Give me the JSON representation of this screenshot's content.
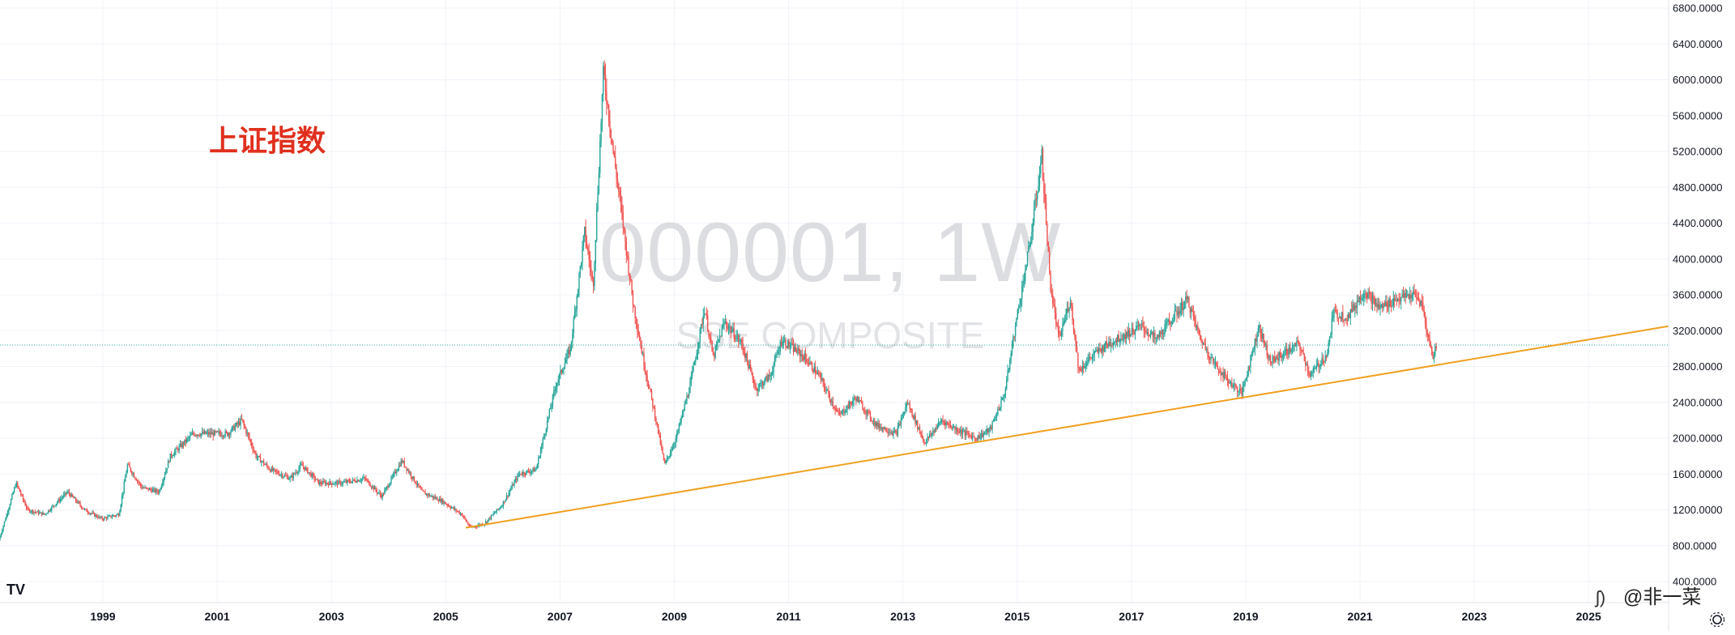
{
  "chart_data": {
    "type": "candlestick",
    "symbol": "000001, 1W",
    "name": "SSE COMPOSITE",
    "annotation": "上证指数",
    "credit": "@非一菜",
    "logo": "TV",
    "ylim": [
      400,
      6800
    ],
    "y_ticks": [
      400,
      800,
      1200,
      1600,
      2000,
      2400,
      2800,
      3200,
      3600,
      4000,
      4400,
      4800,
      5200,
      5600,
      6000,
      6400,
      6800
    ],
    "y_tick_labels": [
      "400.0000",
      "800.0000",
      "1200.0000",
      "1600.0000",
      "2000.0000",
      "2400.0000",
      "2800.0000",
      "3200.0000",
      "3600.0000",
      "4000.0000",
      "4400.0000",
      "4800.0000",
      "5200.0000",
      "5600.0000",
      "6000.0000",
      "6400.0000",
      "6800.0000"
    ],
    "xlim": [
      1997.2,
      2026.4
    ],
    "x_ticks": [
      1999,
      2001,
      2003,
      2005,
      2007,
      2009,
      2011,
      2013,
      2015,
      2017,
      2019,
      2021,
      2023,
      2025
    ],
    "x_tick_labels": [
      "1999",
      "2001",
      "2003",
      "2005",
      "2007",
      "2009",
      "2011",
      "2013",
      "2015",
      "2017",
      "2019",
      "2021",
      "2023",
      "2025"
    ],
    "last_price_line": 3040,
    "trendline": {
      "from": [
        2005.35,
        1000
      ],
      "to": [
        2026.4,
        3250
      ],
      "color": "#f0a020"
    },
    "colors": {
      "up": "#26a69a",
      "down": "#ef5350",
      "grid": "#f0f3fa",
      "price_line": "#26a69a"
    },
    "price_path": [
      [
        1997.2,
        860
      ],
      [
        1997.5,
        1500
      ],
      [
        1997.7,
        1200
      ],
      [
        1998.0,
        1150
      ],
      [
        1998.4,
        1400
      ],
      [
        1998.7,
        1200
      ],
      [
        1999.0,
        1100
      ],
      [
        1999.3,
        1150
      ],
      [
        1999.45,
        1700
      ],
      [
        1999.7,
        1450
      ],
      [
        2000.0,
        1400
      ],
      [
        2000.2,
        1800
      ],
      [
        2000.6,
        2050
      ],
      [
        2000.9,
        2050
      ],
      [
        2001.2,
        2050
      ],
      [
        2001.45,
        2200
      ],
      [
        2001.7,
        1800
      ],
      [
        2001.95,
        1650
      ],
      [
        2002.3,
        1550
      ],
      [
        2002.5,
        1700
      ],
      [
        2002.8,
        1500
      ],
      [
        2003.2,
        1500
      ],
      [
        2003.6,
        1550
      ],
      [
        2003.9,
        1350
      ],
      [
        2004.25,
        1750
      ],
      [
        2004.6,
        1400
      ],
      [
        2004.95,
        1300
      ],
      [
        2005.3,
        1150
      ],
      [
        2005.45,
        1000
      ],
      [
        2005.7,
        1050
      ],
      [
        2006.0,
        1250
      ],
      [
        2006.3,
        1600
      ],
      [
        2006.6,
        1650
      ],
      [
        2006.95,
        2600
      ],
      [
        2007.2,
        3000
      ],
      [
        2007.45,
        4300
      ],
      [
        2007.6,
        3700
      ],
      [
        2007.78,
        6100
      ],
      [
        2007.95,
        5200
      ],
      [
        2008.1,
        4500
      ],
      [
        2008.3,
        3500
      ],
      [
        2008.5,
        2800
      ],
      [
        2008.7,
        2200
      ],
      [
        2008.85,
        1700
      ],
      [
        2009.05,
        2000
      ],
      [
        2009.3,
        2600
      ],
      [
        2009.55,
        3450
      ],
      [
        2009.7,
        2900
      ],
      [
        2009.9,
        3300
      ],
      [
        2010.2,
        3050
      ],
      [
        2010.45,
        2550
      ],
      [
        2010.7,
        2700
      ],
      [
        2010.9,
        3100
      ],
      [
        2011.3,
        2900
      ],
      [
        2011.55,
        2700
      ],
      [
        2011.9,
        2250
      ],
      [
        2012.2,
        2450
      ],
      [
        2012.55,
        2150
      ],
      [
        2012.9,
        2050
      ],
      [
        2013.1,
        2400
      ],
      [
        2013.4,
        1950
      ],
      [
        2013.7,
        2200
      ],
      [
        2013.95,
        2100
      ],
      [
        2014.3,
        2000
      ],
      [
        2014.55,
        2100
      ],
      [
        2014.8,
        2500
      ],
      [
        2015.0,
        3300
      ],
      [
        2015.25,
        4200
      ],
      [
        2015.45,
        5150
      ],
      [
        2015.6,
        3700
      ],
      [
        2015.75,
        3100
      ],
      [
        2015.95,
        3550
      ],
      [
        2016.1,
        2750
      ],
      [
        2016.3,
        2900
      ],
      [
        2016.6,
        3050
      ],
      [
        2016.9,
        3150
      ],
      [
        2017.2,
        3250
      ],
      [
        2017.45,
        3100
      ],
      [
        2017.75,
        3350
      ],
      [
        2018.0,
        3550
      ],
      [
        2018.2,
        3150
      ],
      [
        2018.45,
        2850
      ],
      [
        2018.7,
        2650
      ],
      [
        2018.95,
        2500
      ],
      [
        2019.25,
        3250
      ],
      [
        2019.45,
        2850
      ],
      [
        2019.7,
        2950
      ],
      [
        2019.95,
        3050
      ],
      [
        2020.15,
        2700
      ],
      [
        2020.45,
        2950
      ],
      [
        2020.55,
        3400
      ],
      [
        2020.8,
        3350
      ],
      [
        2021.1,
        3650
      ],
      [
        2021.35,
        3450
      ],
      [
        2021.65,
        3550
      ],
      [
        2021.95,
        3600
      ],
      [
        2022.1,
        3500
      ],
      [
        2022.2,
        3150
      ],
      [
        2022.3,
        2900
      ],
      [
        2022.35,
        3040
      ]
    ]
  }
}
